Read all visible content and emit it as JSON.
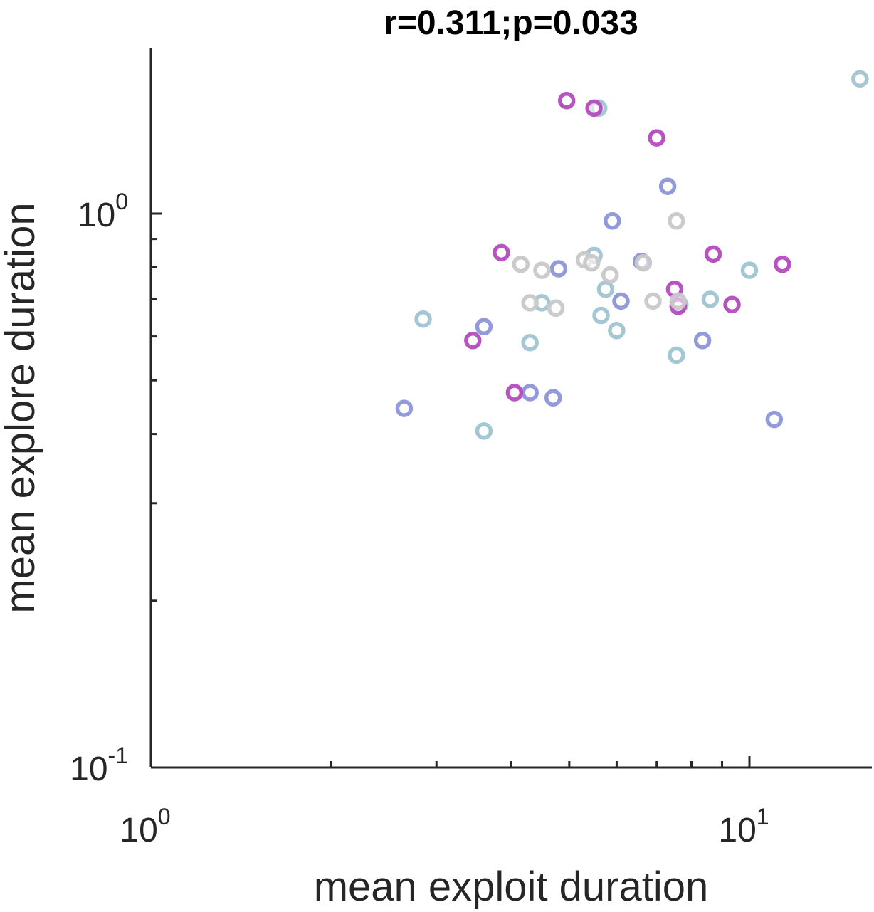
{
  "chart_data": {
    "type": "scatter",
    "title": "r=0.311;p=0.033",
    "xlabel": "mean exploit duration",
    "ylabel": "mean explore duration",
    "xscale": "log",
    "yscale": "log",
    "xlim": [
      1,
      20
    ],
    "ylim": [
      0.1,
      2
    ],
    "grid": false,
    "x_ticks": [
      {
        "base": "10",
        "exp": "0",
        "value": 1
      },
      {
        "base": "10",
        "exp": "1",
        "value": 10
      }
    ],
    "y_ticks": [
      {
        "base": "10",
        "exp": "-1",
        "value": 0.1
      },
      {
        "base": "10",
        "exp": "0",
        "value": 1
      }
    ],
    "series": [
      {
        "color": "#a0c4d1",
        "points": [
          {
            "x": 2.85,
            "y": 0.645
          },
          {
            "x": 3.6,
            "y": 0.405
          },
          {
            "x": 4.3,
            "y": 0.585
          },
          {
            "x": 4.5,
            "y": 0.69
          },
          {
            "x": 5.5,
            "y": 0.84
          },
          {
            "x": 5.6,
            "y": 1.55
          },
          {
            "x": 5.65,
            "y": 0.655
          },
          {
            "x": 5.75,
            "y": 0.73
          },
          {
            "x": 6.0,
            "y": 0.615
          },
          {
            "x": 7.55,
            "y": 0.555
          },
          {
            "x": 7.65,
            "y": 0.685
          },
          {
            "x": 8.6,
            "y": 0.7
          },
          {
            "x": 10.0,
            "y": 0.79
          },
          {
            "x": 15.3,
            "y": 1.75
          }
        ]
      },
      {
        "color": "#8c95d9",
        "points": [
          {
            "x": 2.65,
            "y": 0.445
          },
          {
            "x": 3.6,
            "y": 0.625
          },
          {
            "x": 4.3,
            "y": 0.475
          },
          {
            "x": 4.8,
            "y": 0.795
          },
          {
            "x": 4.7,
            "y": 0.465
          },
          {
            "x": 5.9,
            "y": 0.97
          },
          {
            "x": 6.1,
            "y": 0.695
          },
          {
            "x": 6.6,
            "y": 0.82
          },
          {
            "x": 7.3,
            "y": 1.12
          },
          {
            "x": 8.35,
            "y": 0.59
          },
          {
            "x": 11.0,
            "y": 0.425
          }
        ]
      },
      {
        "color": "#b44bbf",
        "points": [
          {
            "x": 3.45,
            "y": 0.59
          },
          {
            "x": 3.85,
            "y": 0.85
          },
          {
            "x": 4.05,
            "y": 0.475
          },
          {
            "x": 4.95,
            "y": 1.6
          },
          {
            "x": 5.5,
            "y": 1.55
          },
          {
            "x": 7.0,
            "y": 1.37
          },
          {
            "x": 7.5,
            "y": 0.73
          },
          {
            "x": 7.6,
            "y": 0.68
          },
          {
            "x": 8.7,
            "y": 0.845
          },
          {
            "x": 9.35,
            "y": 0.685
          },
          {
            "x": 11.35,
            "y": 0.81
          }
        ]
      },
      {
        "color": "#c8c8c8",
        "points": [
          {
            "x": 4.15,
            "y": 0.81
          },
          {
            "x": 4.3,
            "y": 0.69
          },
          {
            "x": 4.5,
            "y": 0.79
          },
          {
            "x": 4.75,
            "y": 0.675
          },
          {
            "x": 5.3,
            "y": 0.825
          },
          {
            "x": 5.45,
            "y": 0.815
          },
          {
            "x": 5.85,
            "y": 0.775
          },
          {
            "x": 6.65,
            "y": 0.815
          },
          {
            "x": 6.9,
            "y": 0.695
          },
          {
            "x": 7.55,
            "y": 0.97
          },
          {
            "x": 7.6,
            "y": 0.695
          }
        ]
      }
    ]
  }
}
